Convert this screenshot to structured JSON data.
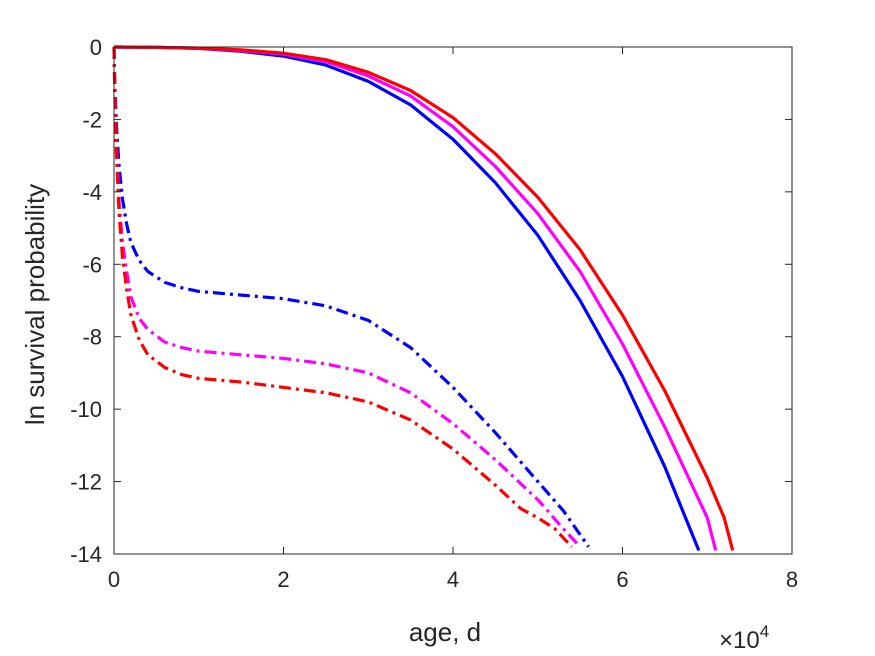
{
  "chart_data": {
    "type": "line",
    "title": "",
    "xlabel": "age, d",
    "ylabel": "ln survival probability",
    "x_multiplier_label": "×10",
    "x_multiplier_exponent": "4",
    "x_tick_scale": 10000,
    "xlim": [
      0,
      80000
    ],
    "ylim": [
      -14,
      0
    ],
    "x_ticks": [
      0,
      20000,
      40000,
      60000,
      80000
    ],
    "x_tick_labels": [
      "0",
      "2",
      "4",
      "6",
      "8"
    ],
    "y_ticks": [
      0,
      -2,
      -4,
      -6,
      -8,
      -10,
      -12,
      -14
    ],
    "y_tick_labels": [
      "0",
      "-2",
      "-4",
      "-6",
      "-8",
      "-10",
      "-12",
      "-14"
    ],
    "grid": false,
    "box": true,
    "series": [
      {
        "color": "#0000ff",
        "dash": "solid",
        "x": [
          0,
          5000,
          10000,
          15000,
          20000,
          25000,
          30000,
          35000,
          40000,
          45000,
          50000,
          55000,
          60000,
          65000,
          69000
        ],
        "y": [
          0,
          -0.01,
          -0.04,
          -0.12,
          -0.25,
          -0.5,
          -0.95,
          -1.6,
          -2.55,
          -3.75,
          -5.2,
          -7.0,
          -9.1,
          -11.6,
          -13.9
        ]
      },
      {
        "color": "#ff00ff",
        "dash": "solid",
        "x": [
          0,
          5000,
          10000,
          15000,
          20000,
          25000,
          30000,
          35000,
          40000,
          45000,
          50000,
          55000,
          60000,
          65000,
          70000,
          71000
        ],
        "y": [
          0,
          -0.01,
          -0.03,
          -0.1,
          -0.2,
          -0.4,
          -0.8,
          -1.35,
          -2.2,
          -3.3,
          -4.6,
          -6.2,
          -8.2,
          -10.5,
          -13.0,
          -13.9
        ]
      },
      {
        "color": "#ff0000",
        "dash": "solid",
        "x": [
          0,
          5000,
          10000,
          15000,
          20000,
          25000,
          30000,
          35000,
          40000,
          45000,
          50000,
          55000,
          60000,
          65000,
          70000,
          72000,
          73000
        ],
        "y": [
          0,
          -0.01,
          -0.03,
          -0.08,
          -0.17,
          -0.35,
          -0.7,
          -1.2,
          -1.95,
          -2.95,
          -4.15,
          -5.6,
          -7.4,
          -9.5,
          -11.9,
          -13.0,
          -13.9
        ]
      },
      {
        "color": "#0000ff",
        "dash": "dashdot",
        "x": [
          0,
          100,
          300,
          600,
          1000,
          1500,
          2000,
          3000,
          4000,
          6000,
          8000,
          10000,
          15000,
          20000,
          25000,
          30000,
          35000,
          40000,
          45000,
          50000,
          53000,
          56000
        ],
        "y": [
          0,
          -1.0,
          -2.2,
          -3.3,
          -4.2,
          -4.9,
          -5.4,
          -5.9,
          -6.2,
          -6.5,
          -6.65,
          -6.75,
          -6.85,
          -6.95,
          -7.15,
          -7.55,
          -8.3,
          -9.4,
          -10.65,
          -12.0,
          -12.8,
          -13.8
        ]
      },
      {
        "color": "#ff00ff",
        "dash": "dashdot",
        "x": [
          0,
          100,
          300,
          600,
          1000,
          1500,
          2000,
          3000,
          4000,
          6000,
          8000,
          10000,
          15000,
          20000,
          25000,
          30000,
          35000,
          40000,
          45000,
          50000,
          53000,
          55000
        ],
        "y": [
          0,
          -1.2,
          -2.8,
          -4.3,
          -5.4,
          -6.2,
          -6.9,
          -7.5,
          -7.8,
          -8.15,
          -8.3,
          -8.4,
          -8.5,
          -8.6,
          -8.75,
          -9.0,
          -9.55,
          -10.4,
          -11.4,
          -12.5,
          -13.3,
          -13.8
        ]
      },
      {
        "color": "#ff0000",
        "dash": "dashdot",
        "x": [
          0,
          100,
          300,
          600,
          1000,
          1500,
          2000,
          3000,
          4000,
          6000,
          8000,
          10000,
          15000,
          20000,
          25000,
          30000,
          35000,
          40000,
          45000,
          48000,
          50000,
          52000,
          54000
        ],
        "y": [
          0,
          -1.3,
          -3.0,
          -4.6,
          -5.8,
          -6.7,
          -7.4,
          -8.1,
          -8.5,
          -8.85,
          -9.05,
          -9.15,
          -9.25,
          -9.4,
          -9.55,
          -9.8,
          -10.3,
          -11.1,
          -12.1,
          -12.75,
          -13.0,
          -13.3,
          -13.8
        ]
      }
    ]
  }
}
